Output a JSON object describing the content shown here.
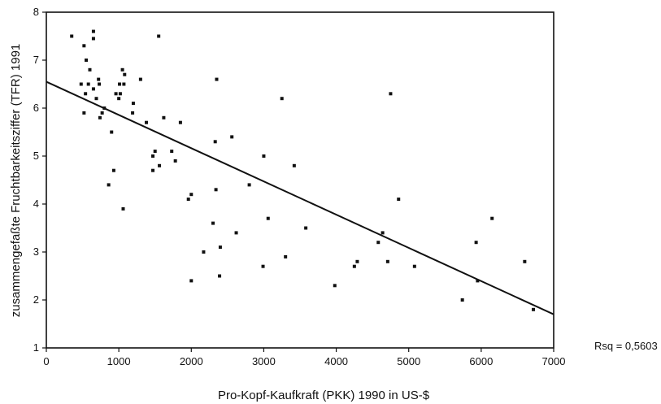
{
  "chart_data": {
    "type": "scatter",
    "title": "",
    "xlabel": "Pro-Kopf-Kaufkraft (PKK) 1990 in US-$",
    "ylabel": "zusammengefaßte Fruchtbarkeitsziffer (TFR) 1991",
    "xlim": [
      0,
      7000
    ],
    "ylim": [
      1,
      8
    ],
    "xticks": [
      "0",
      "1000",
      "2000",
      "3000",
      "4000",
      "5000",
      "6000",
      "7000"
    ],
    "yticks": [
      "1",
      "2",
      "3",
      "4",
      "5",
      "6",
      "7",
      "8"
    ],
    "grid": false,
    "annotation": "Rsq = 0,5603",
    "regression_line": {
      "x": [
        0,
        7000
      ],
      "y": [
        6.55,
        1.7
      ]
    },
    "points": [
      {
        "x": 350,
        "y": 7.5
      },
      {
        "x": 520,
        "y": 7.3
      },
      {
        "x": 650,
        "y": 7.6
      },
      {
        "x": 650,
        "y": 7.45
      },
      {
        "x": 550,
        "y": 7.0
      },
      {
        "x": 600,
        "y": 6.8
      },
      {
        "x": 580,
        "y": 6.5
      },
      {
        "x": 480,
        "y": 6.5
      },
      {
        "x": 650,
        "y": 6.4
      },
      {
        "x": 720,
        "y": 6.6
      },
      {
        "x": 730,
        "y": 6.5
      },
      {
        "x": 540,
        "y": 6.3
      },
      {
        "x": 690,
        "y": 6.2
      },
      {
        "x": 1050,
        "y": 6.8
      },
      {
        "x": 1080,
        "y": 6.7
      },
      {
        "x": 1010,
        "y": 6.5
      },
      {
        "x": 1070,
        "y": 6.5
      },
      {
        "x": 1300,
        "y": 6.6
      },
      {
        "x": 960,
        "y": 6.3
      },
      {
        "x": 1020,
        "y": 6.3
      },
      {
        "x": 1000,
        "y": 6.2
      },
      {
        "x": 1200,
        "y": 6.1
      },
      {
        "x": 800,
        "y": 6.0
      },
      {
        "x": 770,
        "y": 5.9
      },
      {
        "x": 740,
        "y": 5.8
      },
      {
        "x": 520,
        "y": 5.9
      },
      {
        "x": 1190,
        "y": 5.9
      },
      {
        "x": 1550,
        "y": 7.5
      },
      {
        "x": 1620,
        "y": 5.8
      },
      {
        "x": 1380,
        "y": 5.7
      },
      {
        "x": 1850,
        "y": 5.7
      },
      {
        "x": 900,
        "y": 5.5
      },
      {
        "x": 1500,
        "y": 5.1
      },
      {
        "x": 1470,
        "y": 5.0
      },
      {
        "x": 1730,
        "y": 5.1
      },
      {
        "x": 1780,
        "y": 4.9
      },
      {
        "x": 1560,
        "y": 4.8
      },
      {
        "x": 1470,
        "y": 4.7
      },
      {
        "x": 930,
        "y": 4.7
      },
      {
        "x": 860,
        "y": 4.4
      },
      {
        "x": 1060,
        "y": 3.9
      },
      {
        "x": 2000,
        "y": 4.2
      },
      {
        "x": 1960,
        "y": 4.1
      },
      {
        "x": 2350,
        "y": 6.6
      },
      {
        "x": 2330,
        "y": 5.3
      },
      {
        "x": 2560,
        "y": 5.4
      },
      {
        "x": 2340,
        "y": 4.3
      },
      {
        "x": 2300,
        "y": 3.6
      },
      {
        "x": 2620,
        "y": 3.4
      },
      {
        "x": 2400,
        "y": 3.1
      },
      {
        "x": 2170,
        "y": 3.0
      },
      {
        "x": 2390,
        "y": 2.5
      },
      {
        "x": 2000,
        "y": 2.4
      },
      {
        "x": 2800,
        "y": 4.4
      },
      {
        "x": 3250,
        "y": 6.2
      },
      {
        "x": 3000,
        "y": 5.0
      },
      {
        "x": 3420,
        "y": 4.8
      },
      {
        "x": 3060,
        "y": 3.7
      },
      {
        "x": 3580,
        "y": 3.5
      },
      {
        "x": 3300,
        "y": 2.9
      },
      {
        "x": 2990,
        "y": 2.7
      },
      {
        "x": 3980,
        "y": 2.3
      },
      {
        "x": 4250,
        "y": 2.7
      },
      {
        "x": 4290,
        "y": 2.8
      },
      {
        "x": 4580,
        "y": 3.2
      },
      {
        "x": 4640,
        "y": 3.4
      },
      {
        "x": 4750,
        "y": 6.3
      },
      {
        "x": 4860,
        "y": 4.1
      },
      {
        "x": 4710,
        "y": 2.8
      },
      {
        "x": 5080,
        "y": 2.7
      },
      {
        "x": 5740,
        "y": 2.0
      },
      {
        "x": 5930,
        "y": 3.2
      },
      {
        "x": 5950,
        "y": 2.4
      },
      {
        "x": 6150,
        "y": 3.7
      },
      {
        "x": 6600,
        "y": 2.8
      },
      {
        "x": 6720,
        "y": 1.8
      }
    ]
  }
}
